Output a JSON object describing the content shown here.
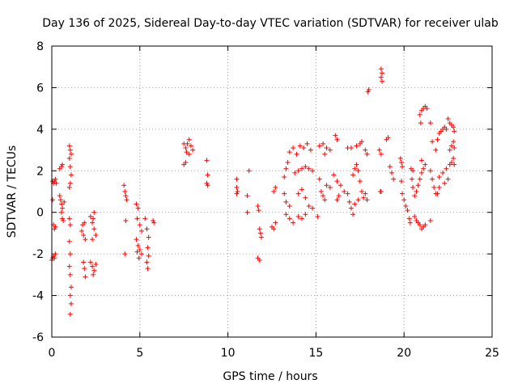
{
  "chart_data": {
    "type": "scatter",
    "title": "Day 136 of 2025, Sidereal Day-to-day VTEC variation (SDTVAR) for receiver ulab",
    "xlabel": "GPS time / hours",
    "ylabel": "SDTVAR / TECUs",
    "xlim": [
      0,
      25
    ],
    "ylim": [
      -6,
      8
    ],
    "xticks": [
      "0",
      "5",
      "10",
      "15",
      "20",
      "25"
    ],
    "yticks": [
      "-6",
      "-4",
      "-2",
      "0",
      "2",
      "4",
      "6",
      "8"
    ],
    "grid": true,
    "marker": "+",
    "color": "#ff0000",
    "series": [
      {
        "name": "SDTVAR",
        "points": [
          [
            0.05,
            1.5
          ],
          [
            0.1,
            1.4
          ],
          [
            0.15,
            1.5
          ],
          [
            0.2,
            1.6
          ],
          [
            0.25,
            1.4
          ],
          [
            0.05,
            0.6
          ],
          [
            0.1,
            -0.6
          ],
          [
            0.15,
            -0.8
          ],
          [
            0.2,
            -0.7
          ],
          [
            0.0,
            -2.3
          ],
          [
            0.05,
            -2.2
          ],
          [
            0.1,
            -2.1
          ],
          [
            0.15,
            -2.2
          ],
          [
            0.2,
            -2.0
          ],
          [
            0.45,
            2.1
          ],
          [
            0.55,
            2.2
          ],
          [
            0.6,
            2.3
          ],
          [
            0.45,
            0.8
          ],
          [
            0.5,
            0.6
          ],
          [
            0.55,
            0.4
          ],
          [
            0.6,
            0.2
          ],
          [
            0.55,
            0.0
          ],
          [
            0.6,
            -0.3
          ],
          [
            0.65,
            -0.4
          ],
          [
            0.7,
            0.5
          ],
          [
            1.0,
            3.2
          ],
          [
            1.05,
            3.0
          ],
          [
            1.1,
            2.8
          ],
          [
            1.0,
            2.6
          ],
          [
            1.05,
            2.2
          ],
          [
            1.1,
            1.8
          ],
          [
            1.05,
            1.4
          ],
          [
            1.0,
            1.2
          ],
          [
            1.0,
            -0.3
          ],
          [
            1.05,
            -0.6
          ],
          [
            1.0,
            -1.4
          ],
          [
            1.05,
            -2.0
          ],
          [
            1.0,
            -2.6
          ],
          [
            1.05,
            -3.0
          ],
          [
            1.1,
            -3.6
          ],
          [
            1.05,
            -4.0
          ],
          [
            1.1,
            -4.4
          ],
          [
            1.05,
            -4.9
          ],
          [
            1.7,
            -0.9
          ],
          [
            1.8,
            -1.1
          ],
          [
            1.9,
            -1.3
          ],
          [
            1.75,
            -0.6
          ],
          [
            1.85,
            -0.5
          ],
          [
            1.8,
            -2.4
          ],
          [
            1.85,
            -2.7
          ],
          [
            1.9,
            -3.1
          ],
          [
            2.2,
            -0.2
          ],
          [
            2.3,
            -0.5
          ],
          [
            2.4,
            -0.8
          ],
          [
            2.5,
            -1.1
          ],
          [
            2.3,
            -1.3
          ],
          [
            2.4,
            0.0
          ],
          [
            2.35,
            -0.3
          ],
          [
            2.2,
            -2.4
          ],
          [
            2.3,
            -2.6
          ],
          [
            2.4,
            -2.8
          ],
          [
            2.5,
            -2.5
          ],
          [
            2.35,
            -3.0
          ],
          [
            4.1,
            1.3
          ],
          [
            4.15,
            1.0
          ],
          [
            4.2,
            0.8
          ],
          [
            4.25,
            0.6
          ],
          [
            4.2,
            -0.4
          ],
          [
            4.15,
            -2.0
          ],
          [
            4.8,
            0.4
          ],
          [
            4.9,
            0.2
          ],
          [
            4.85,
            -0.3
          ],
          [
            5.0,
            -0.6
          ],
          [
            5.1,
            -0.9
          ],
          [
            4.8,
            -1.3
          ],
          [
            4.9,
            -1.6
          ],
          [
            4.85,
            -1.9
          ],
          [
            4.95,
            -2.2
          ],
          [
            5.0,
            -1.8
          ],
          [
            5.1,
            -2.0
          ],
          [
            5.3,
            -0.3
          ],
          [
            5.4,
            -0.8
          ],
          [
            5.5,
            -1.2
          ],
          [
            5.45,
            -1.7
          ],
          [
            5.5,
            -2.1
          ],
          [
            5.4,
            -2.4
          ],
          [
            5.45,
            -2.7
          ],
          [
            5.75,
            -0.4
          ],
          [
            5.8,
            -0.5
          ],
          [
            7.5,
            3.3
          ],
          [
            7.6,
            3.1
          ],
          [
            7.7,
            3.3
          ],
          [
            7.8,
            3.5
          ],
          [
            7.9,
            3.2
          ],
          [
            8.0,
            3.0
          ],
          [
            7.65,
            2.9
          ],
          [
            7.8,
            2.8
          ],
          [
            7.5,
            2.3
          ],
          [
            7.6,
            2.4
          ],
          [
            8.8,
            2.5
          ],
          [
            8.85,
            1.8
          ],
          [
            8.8,
            1.4
          ],
          [
            8.85,
            1.3
          ],
          [
            10.5,
            1.6
          ],
          [
            10.5,
            1.2
          ],
          [
            10.55,
            1.0
          ],
          [
            10.5,
            0.9
          ],
          [
            11.2,
            2.0
          ],
          [
            11.1,
            0.8
          ],
          [
            11.1,
            0.0
          ],
          [
            11.7,
            0.3
          ],
          [
            11.75,
            0.1
          ],
          [
            11.8,
            -0.8
          ],
          [
            11.85,
            -1.0
          ],
          [
            11.9,
            -1.2
          ],
          [
            11.7,
            -2.2
          ],
          [
            11.8,
            -2.3
          ],
          [
            12.5,
            -0.7
          ],
          [
            12.6,
            -0.8
          ],
          [
            12.7,
            -0.5
          ],
          [
            12.6,
            1.0
          ],
          [
            12.7,
            1.2
          ],
          [
            13.2,
            1.7
          ],
          [
            13.3,
            2.1
          ],
          [
            13.4,
            2.4
          ],
          [
            13.2,
            0.9
          ],
          [
            13.3,
            0.5
          ],
          [
            13.5,
            0.3
          ],
          [
            13.3,
            -0.1
          ],
          [
            13.5,
            -0.3
          ],
          [
            13.7,
            -0.5
          ],
          [
            13.5,
            2.9
          ],
          [
            13.7,
            3.1
          ],
          [
            13.9,
            2.8
          ],
          [
            14.1,
            3.2
          ],
          [
            14.3,
            3.1
          ],
          [
            14.5,
            3.3
          ],
          [
            14.7,
            3.0
          ],
          [
            13.8,
            1.9
          ],
          [
            14.0,
            2.0
          ],
          [
            14.2,
            2.1
          ],
          [
            14.4,
            2.2
          ],
          [
            14.6,
            2.1
          ],
          [
            14.8,
            2.0
          ],
          [
            14.0,
            0.9
          ],
          [
            14.2,
            1.1
          ],
          [
            14.4,
            0.7
          ],
          [
            14.6,
            0.3
          ],
          [
            14.8,
            0.2
          ],
          [
            14.0,
            -0.2
          ],
          [
            14.2,
            -0.3
          ],
          [
            14.4,
            -0.1
          ],
          [
            15.2,
            3.2
          ],
          [
            15.4,
            3.3
          ],
          [
            15.6,
            3.1
          ],
          [
            15.8,
            3.0
          ],
          [
            15.5,
            2.8
          ],
          [
            15.2,
            1.6
          ],
          [
            15.3,
            1.0
          ],
          [
            15.4,
            0.8
          ],
          [
            15.5,
            0.6
          ],
          [
            15.6,
            1.3
          ],
          [
            15.8,
            1.2
          ],
          [
            15.1,
            -0.2
          ],
          [
            16.1,
            3.7
          ],
          [
            16.2,
            3.5
          ],
          [
            16.0,
            1.8
          ],
          [
            16.2,
            1.5
          ],
          [
            16.4,
            1.3
          ],
          [
            16.6,
            1.0
          ],
          [
            16.3,
            0.8
          ],
          [
            16.2,
            0.6
          ],
          [
            16.8,
            0.9
          ],
          [
            16.9,
            0.5
          ],
          [
            17.0,
            0.2
          ],
          [
            17.1,
            -0.1
          ],
          [
            17.2,
            0.4
          ],
          [
            16.8,
            3.1
          ],
          [
            17.0,
            3.1
          ],
          [
            17.3,
            3.2
          ],
          [
            17.5,
            3.3
          ],
          [
            17.6,
            3.4
          ],
          [
            17.1,
            1.8
          ],
          [
            17.2,
            2.1
          ],
          [
            17.3,
            2.3
          ],
          [
            17.4,
            2.0
          ],
          [
            17.5,
            1.5
          ],
          [
            17.6,
            1.0
          ],
          [
            17.4,
            0.6
          ],
          [
            17.8,
            3.0
          ],
          [
            17.9,
            2.8
          ],
          [
            17.7,
            0.7
          ],
          [
            17.8,
            0.9
          ],
          [
            17.9,
            0.6
          ],
          [
            17.95,
            5.8
          ],
          [
            18.0,
            5.9
          ],
          [
            18.7,
            6.9
          ],
          [
            18.75,
            6.7
          ],
          [
            18.7,
            6.5
          ],
          [
            18.75,
            6.3
          ],
          [
            18.6,
            3.0
          ],
          [
            18.7,
            2.8
          ],
          [
            18.65,
            1.0
          ],
          [
            18.7,
            1.0
          ],
          [
            19.0,
            3.5
          ],
          [
            19.1,
            3.6
          ],
          [
            19.2,
            2.2
          ],
          [
            19.3,
            1.9
          ],
          [
            19.4,
            1.6
          ],
          [
            19.8,
            2.6
          ],
          [
            19.85,
            2.4
          ],
          [
            19.9,
            2.2
          ],
          [
            19.85,
            1.5
          ],
          [
            19.9,
            0.9
          ],
          [
            20.0,
            0.6
          ],
          [
            20.1,
            0.3
          ],
          [
            20.2,
            0.1
          ],
          [
            20.3,
            -0.3
          ],
          [
            20.35,
            -0.5
          ],
          [
            20.4,
            2.1
          ],
          [
            20.5,
            2.0
          ],
          [
            20.45,
            1.6
          ],
          [
            20.5,
            1.2
          ],
          [
            20.6,
            -0.2
          ],
          [
            20.7,
            -0.4
          ],
          [
            20.8,
            -0.5
          ],
          [
            20.9,
            -0.6
          ],
          [
            21.0,
            -0.8
          ],
          [
            21.1,
            -0.7
          ],
          [
            21.2,
            -0.6
          ],
          [
            20.6,
            0.8
          ],
          [
            20.7,
            1.0
          ],
          [
            20.8,
            1.3
          ],
          [
            20.9,
            1.6
          ],
          [
            21.0,
            1.9
          ],
          [
            21.1,
            2.1
          ],
          [
            21.2,
            2.3
          ],
          [
            21.0,
            2.5
          ],
          [
            20.9,
            4.7
          ],
          [
            21.0,
            4.9
          ],
          [
            21.1,
            5.0
          ],
          [
            21.2,
            5.1
          ],
          [
            21.3,
            5.0
          ],
          [
            20.95,
            4.3
          ],
          [
            21.5,
            4.3
          ],
          [
            21.6,
            3.4
          ],
          [
            21.5,
            2.0
          ],
          [
            21.6,
            1.6
          ],
          [
            21.7,
            1.2
          ],
          [
            21.8,
            0.9
          ],
          [
            21.5,
            -0.4
          ],
          [
            21.8,
            3.0
          ],
          [
            21.9,
            3.5
          ],
          [
            22.0,
            3.8
          ],
          [
            22.1,
            3.9
          ],
          [
            22.2,
            4.0
          ],
          [
            22.3,
            4.1
          ],
          [
            22.4,
            4.0
          ],
          [
            22.0,
            1.7
          ],
          [
            22.2,
            1.9
          ],
          [
            22.4,
            2.1
          ],
          [
            22.6,
            2.3
          ],
          [
            22.5,
            1.6
          ],
          [
            22.3,
            1.4
          ],
          [
            22.0,
            1.2
          ],
          [
            21.9,
            0.9
          ],
          [
            22.5,
            4.5
          ],
          [
            22.6,
            4.3
          ],
          [
            22.7,
            4.2
          ],
          [
            22.8,
            4.1
          ],
          [
            22.85,
            3.9
          ],
          [
            22.6,
            3.0
          ],
          [
            22.7,
            3.2
          ],
          [
            22.8,
            3.4
          ],
          [
            22.85,
            3.1
          ],
          [
            22.7,
            2.4
          ],
          [
            22.8,
            2.6
          ],
          [
            22.85,
            2.3
          ]
        ]
      }
    ]
  }
}
